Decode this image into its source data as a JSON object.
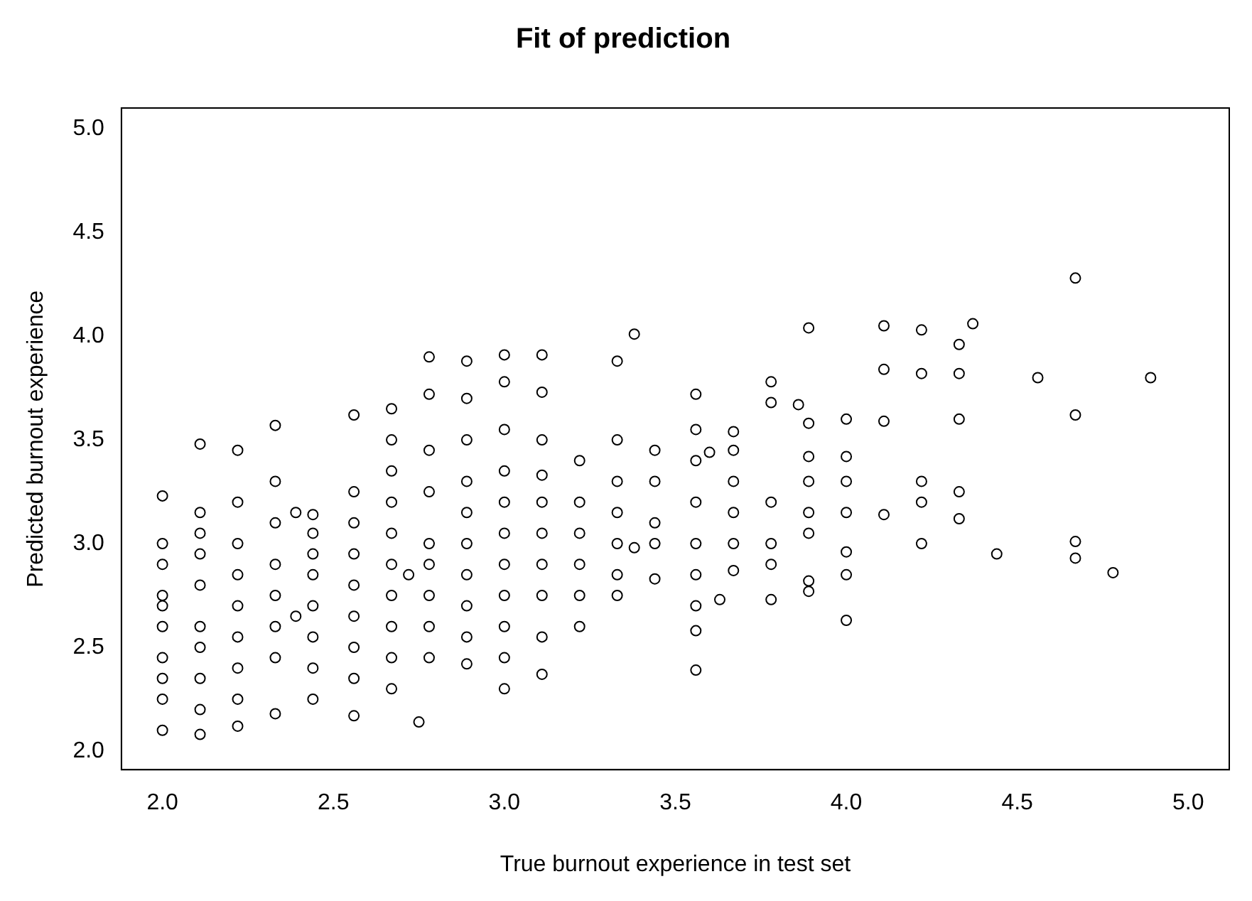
{
  "chart_data": {
    "type": "scatter",
    "title": "Fit of prediction",
    "xlabel": "True burnout experience in test set",
    "ylabel": "Predicted burnout experience",
    "xlim": [
      1.88,
      5.12
    ],
    "ylim": [
      1.91,
      5.1
    ],
    "xticks": [
      {
        "value": 2,
        "label": "2.0"
      },
      2.5,
      {
        "value": 3,
        "label": "3.0"
      },
      3.5,
      {
        "value": 4,
        "label": "4.0"
      },
      4.5,
      {
        "value": 5,
        "label": "5.0"
      }
    ],
    "yticks": [
      {
        "value": 2,
        "label": "2.0"
      },
      2.5,
      {
        "value": 3,
        "label": "3.0"
      },
      3.5,
      {
        "value": 4,
        "label": "4.0"
      },
      4.5,
      {
        "value": 5,
        "label": "5.0"
      }
    ],
    "grid": false,
    "legend": false,
    "marker": "circle",
    "series": [
      {
        "color": "#000000",
        "x": [
          2,
          2,
          2,
          2,
          2,
          2,
          2,
          2,
          2,
          2,
          2.11,
          2.11,
          2.11,
          2.11,
          2.11,
          2.11,
          2.11,
          2.11,
          2.11,
          2.11,
          2.22,
          2.22,
          2.22,
          2.22,
          2.22,
          2.22,
          2.22,
          2.22,
          2.22,
          2.33,
          2.33,
          2.33,
          2.33,
          2.33,
          2.33,
          2.33,
          2.33,
          2.39,
          2.39,
          2.44,
          2.44,
          2.44,
          2.44,
          2.44,
          2.44,
          2.44,
          2.44,
          2.56,
          2.56,
          2.56,
          2.56,
          2.56,
          2.56,
          2.56,
          2.56,
          2.56,
          2.67,
          2.67,
          2.67,
          2.67,
          2.67,
          2.67,
          2.67,
          2.67,
          2.67,
          2.67,
          2.75,
          2.72,
          2.78,
          2.78,
          2.78,
          2.78,
          2.78,
          2.78,
          2.78,
          2.78,
          2.78,
          2.89,
          2.89,
          2.89,
          2.89,
          2.89,
          2.89,
          2.89,
          2.89,
          2.89,
          2.89,
          3,
          3,
          3,
          3,
          3,
          3,
          3,
          3,
          3,
          3,
          3,
          3.11,
          3.11,
          3.11,
          3.11,
          3.11,
          3.11,
          3.11,
          3.11,
          3.11,
          3.11,
          3.22,
          3.22,
          3.22,
          3.22,
          3.22,
          3.22,
          3.33,
          3.33,
          3.33,
          3.33,
          3.33,
          3.33,
          3.33,
          3.38,
          3.38,
          3.44,
          3.44,
          3.44,
          3.44,
          3.44,
          3.56,
          3.56,
          3.56,
          3.56,
          3.56,
          3.56,
          3.56,
          3.56,
          3.56,
          3.6,
          3.63,
          3.67,
          3.67,
          3.67,
          3.67,
          3.67,
          3.67,
          3.78,
          3.78,
          3.78,
          3.78,
          3.78,
          3.78,
          3.86,
          3.89,
          3.89,
          3.89,
          3.89,
          3.89,
          3.89,
          3.89,
          3.89,
          4,
          4,
          4,
          4,
          4,
          4,
          4,
          4.11,
          4.11,
          4.11,
          4.11,
          4.22,
          4.22,
          4.22,
          4.22,
          4.22,
          4.33,
          4.33,
          4.33,
          4.33,
          4.33,
          4.37,
          4.44,
          4.56,
          4.67,
          4.67,
          4.67,
          4.67,
          4.78,
          4.89
        ],
        "values": [
          2.1,
          2.25,
          2.35,
          2.45,
          2.6,
          2.7,
          2.75,
          2.9,
          3.0,
          3.23,
          2.08,
          2.2,
          2.35,
          2.5,
          2.6,
          2.8,
          2.95,
          3.05,
          3.15,
          3.48,
          2.12,
          2.25,
          2.4,
          2.55,
          2.7,
          2.85,
          3.0,
          3.2,
          3.45,
          2.18,
          2.45,
          2.6,
          2.75,
          2.9,
          3.1,
          3.3,
          3.57,
          2.65,
          3.15,
          2.25,
          2.4,
          2.55,
          2.7,
          2.85,
          2.95,
          3.05,
          3.14,
          2.17,
          2.35,
          2.5,
          2.65,
          2.8,
          2.95,
          3.1,
          3.25,
          3.62,
          2.3,
          2.45,
          2.6,
          2.75,
          2.9,
          3.05,
          3.2,
          3.35,
          3.5,
          3.65,
          2.14,
          2.85,
          2.45,
          2.6,
          2.75,
          2.9,
          3.0,
          3.25,
          3.45,
          3.72,
          3.9,
          2.42,
          2.55,
          2.7,
          2.85,
          3.0,
          3.15,
          3.3,
          3.5,
          3.7,
          3.88,
          2.3,
          2.45,
          2.6,
          2.75,
          2.9,
          3.05,
          3.2,
          3.35,
          3.55,
          3.78,
          3.91,
          2.37,
          2.55,
          2.75,
          2.9,
          3.05,
          3.2,
          3.33,
          3.5,
          3.73,
          3.91,
          2.6,
          2.75,
          2.9,
          3.05,
          3.2,
          3.4,
          2.75,
          2.85,
          3.0,
          3.15,
          3.3,
          3.5,
          3.88,
          4.01,
          2.98,
          2.83,
          3.0,
          3.1,
          3.3,
          3.45,
          2.39,
          2.58,
          2.7,
          2.85,
          3.0,
          3.2,
          3.4,
          3.55,
          3.72,
          3.44,
          2.73,
          2.87,
          3.0,
          3.15,
          3.3,
          3.45,
          3.54,
          2.73,
          2.9,
          3.0,
          3.2,
          3.68,
          3.78,
          3.67,
          2.77,
          2.82,
          3.05,
          3.15,
          3.3,
          3.42,
          3.58,
          4.04,
          2.63,
          2.85,
          2.96,
          3.15,
          3.3,
          3.42,
          3.6,
          3.14,
          3.59,
          3.84,
          4.05,
          3.0,
          3.2,
          3.3,
          3.82,
          4.03,
          3.12,
          3.25,
          3.6,
          3.82,
          3.96,
          4.06,
          2.95,
          3.8,
          2.93,
          3.01,
          3.62,
          4.28,
          2.86,
          3.8
        ]
      }
    ]
  }
}
